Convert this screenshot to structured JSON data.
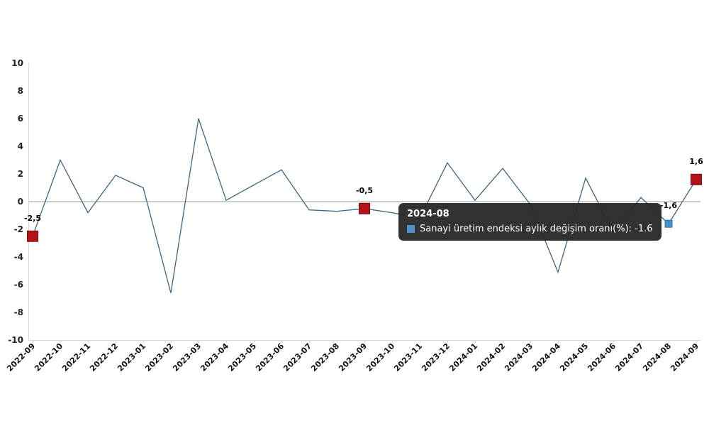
{
  "chart_data": {
    "type": "line",
    "title": "",
    "xlabel": "",
    "ylabel": "",
    "ylim": [
      -10,
      10
    ],
    "y_ticks": [
      10,
      8,
      6,
      4,
      2,
      0,
      -2,
      -4,
      -6,
      -8,
      -10
    ],
    "grid": "zero-line-only",
    "legend_position": "none",
    "x": [
      "2022-09",
      "2022-10",
      "2022-11",
      "2022-12",
      "2023-01",
      "2023-02",
      "2023-03",
      "2023-04",
      "2023-05",
      "2023-06",
      "2023-07",
      "2023-08",
      "2023-09",
      "2023-10",
      "2023-11",
      "2023-12",
      "2024-01",
      "2024-02",
      "2024-03",
      "2024-04",
      "2024-05",
      "2024-06",
      "2024-07",
      "2024-08",
      "2024-09"
    ],
    "series": [
      {
        "name": "Sanayi üretim endeksi aylık değişim oranı(%)",
        "values": [
          -2.5,
          3.0,
          -0.8,
          1.9,
          1.0,
          -6.6,
          6.0,
          0.1,
          1.2,
          2.3,
          -0.6,
          -0.7,
          -0.5,
          -0.8,
          -1.2,
          2.8,
          0.1,
          2.4,
          -0.2,
          -5.1,
          1.7,
          -2.2,
          0.3,
          -1.6,
          1.6
        ]
      }
    ],
    "marked_points": [
      {
        "x": "2022-09",
        "value": -2.5,
        "label": "-2,5",
        "marker": "red-square"
      },
      {
        "x": "2023-09",
        "value": -0.5,
        "label": "-0,5",
        "marker": "red-square"
      },
      {
        "x": "2024-08",
        "value": -1.6,
        "label": "-1,6",
        "marker": "blue-square"
      },
      {
        "x": "2024-09",
        "value": 1.6,
        "label": "1,6",
        "marker": "red-square"
      }
    ]
  },
  "tooltip": {
    "title": "2024-08",
    "icon": "blue-square-icon",
    "body_text": "Sanayi üretim endeksi aylık değişim oranı(%): -1.6"
  },
  "colors": {
    "line": "#3e6480",
    "red_marker": "#b31219",
    "red_marker_border": "#7e0d11",
    "blue_marker": "#4191cc",
    "blue_marker_border": "#2f77a8",
    "zero_line": "#999999",
    "axis_line": "#d6d6d6",
    "tooltip_bg": "#2a2a2a",
    "tooltip_text": "#ffffff",
    "tooltip_icon": "#4a90cd"
  }
}
